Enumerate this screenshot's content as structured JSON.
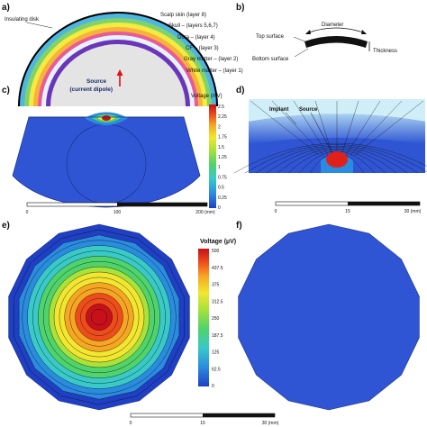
{
  "panels": {
    "a": {
      "label": "a)",
      "layers": [
        "Insulating disk",
        "Scalp skin (layer 8)",
        "Skull – (layers 5,6,7)",
        "Dura – (layer 4)",
        "CF – (layer 3)",
        "Gray matter – (layer 2)",
        "White matter – (layer 1)"
      ],
      "source_line1": "Source",
      "source_line2": "(current dipole)"
    },
    "b": {
      "label": "b)",
      "diameter": "Diameter",
      "top_surface": "Top surface",
      "bottom_surface": "Bottom surface",
      "thickness": "Thickness"
    },
    "c": {
      "label": "c)",
      "colorbar_title": "Voltage (mV)",
      "colorbar_ticks": [
        "2.5",
        "2.25",
        "2",
        "1.75",
        "1.5",
        "1.25",
        "1",
        "0.75",
        "0.5",
        "0.25",
        "0"
      ],
      "scale_ticks": [
        "0",
        "100",
        "200 (mm)"
      ]
    },
    "d": {
      "label": "d)",
      "implant": "Implant",
      "source": "Source",
      "scale_ticks": [
        "0",
        "15",
        "30 (mm)"
      ]
    },
    "e": {
      "label": "e)",
      "colorbar_title": "Voltage (µV)",
      "colorbar_ticks": [
        "500",
        "437.5",
        "375",
        "312.5",
        "250",
        "187.5",
        "125",
        "62.5",
        "0"
      ]
    },
    "f": {
      "label": "f)"
    },
    "bottom_scale_ticks": [
      "0",
      "15",
      "30 (mm)"
    ]
  },
  "colors": {
    "field_blue": "#2f55d4",
    "deep_blue": "#1f3fc4",
    "scale_gradient": [
      "#1f3fc4",
      "#2a8ce0",
      "#38c9c8",
      "#4fd36b",
      "#a9e23a",
      "#f2e630",
      "#f6a623",
      "#ee4d1b",
      "#c8101a"
    ]
  }
}
